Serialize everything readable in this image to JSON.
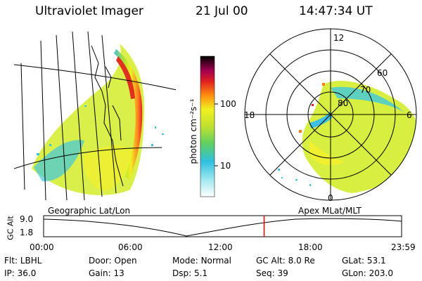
{
  "header": {
    "instrument": "Ultraviolet Imager",
    "date": "21 Jul 00",
    "time": "14:47:34 UT"
  },
  "colorbar": {
    "label": "photon cm⁻²s⁻¹",
    "ticks": [
      "100",
      "10"
    ]
  },
  "polar": {
    "mlt_labels": [
      "12",
      "18",
      "6",
      "0"
    ],
    "lat_labels": [
      "60",
      "70",
      "80"
    ]
  },
  "panel_labels": {
    "left": "Geographic Lat/Lon",
    "right": "Apex MLat/MLT"
  },
  "timeline": {
    "ylabel": "GC Alt",
    "yticks": [
      "9.0",
      "1.8"
    ],
    "xticks": [
      "00:00",
      "06:00",
      "12:00",
      "18:00",
      "23:59"
    ],
    "marker_fraction": 0.616
  },
  "info": {
    "row1": [
      {
        "label": "Flt:",
        "value": "LBHL"
      },
      {
        "label": "Door:",
        "value": "Open"
      },
      {
        "label": "Mode:",
        "value": "Normal"
      },
      {
        "label": "GC Alt:",
        "value": "8.0 Re"
      },
      {
        "label": "GLat:",
        "value": "53.1"
      }
    ],
    "row2": [
      {
        "label": "IP:",
        "value": "36.0"
      },
      {
        "label": "Gain:",
        "value": "13"
      },
      {
        "label": "Dsp:",
        "value": "5.1"
      },
      {
        "label": "Seq:",
        "value": "39"
      },
      {
        "label": "GLon:",
        "value": "203.0"
      }
    ]
  },
  "colors": {
    "marker": "#e00000"
  }
}
